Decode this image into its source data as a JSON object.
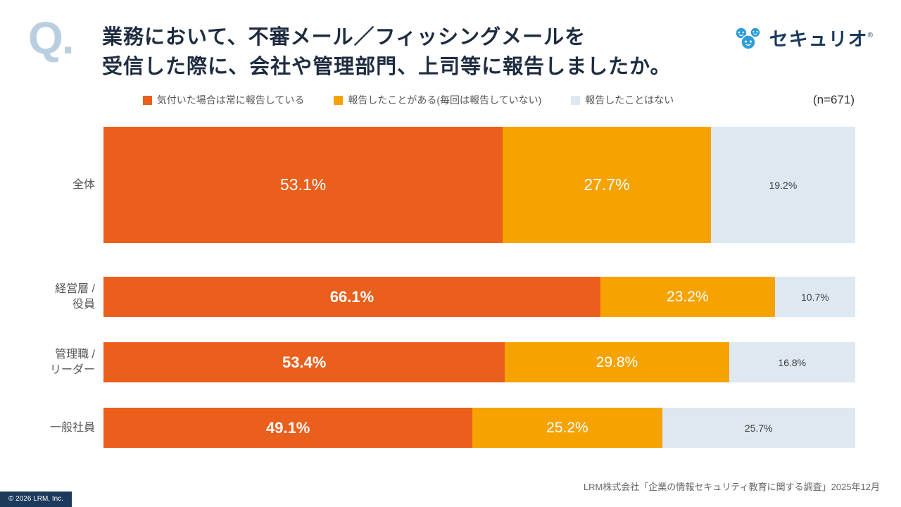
{
  "page": {
    "q_mark": "Q.",
    "title_line1": "業務において、不審メール／フィッシングメールを",
    "title_line2": "受信した際に、会社や管理部門、上司等に報告しましたか。",
    "sample_size": "(n=671)",
    "source": "LRM株式会社「企業の情報セキュリティ教育に関する調査」2025年12月",
    "copyright": "© 2026 LRM, Inc.",
    "logo_text": "セキュリオ",
    "logo_reg": "®"
  },
  "colors": {
    "always_report": "#ea5f1b",
    "sometimes_report": "#f6a200",
    "never_report": "#dde8f1",
    "title": "#1e2c40",
    "logo_blue": "#2d9ed8"
  },
  "chart_data": {
    "type": "bar",
    "orientation": "horizontal-stacked",
    "title": "業務において、不審メール／フィッシングメールを受信した際に、会社や管理部門、上司等に報告しましたか。",
    "unit": "%",
    "xlim": [
      0,
      100
    ],
    "legend_position": "top",
    "sample_size": 671,
    "categories": [
      "全体",
      "経営層 /\n役員",
      "管理職 /\nリーダー",
      "一般社員"
    ],
    "series": [
      {
        "name": "気付いた場合は常に報告している",
        "color": "#ea5f1b",
        "values": [
          53.1,
          66.1,
          53.4,
          49.1
        ]
      },
      {
        "name": "報告したことがある(毎回は報告していない)",
        "color": "#f6a200",
        "values": [
          27.7,
          23.2,
          29.8,
          25.2
        ]
      },
      {
        "name": "報告したことはない",
        "color": "#dde8f1",
        "values": [
          19.2,
          10.7,
          16.8,
          25.7
        ]
      }
    ]
  }
}
